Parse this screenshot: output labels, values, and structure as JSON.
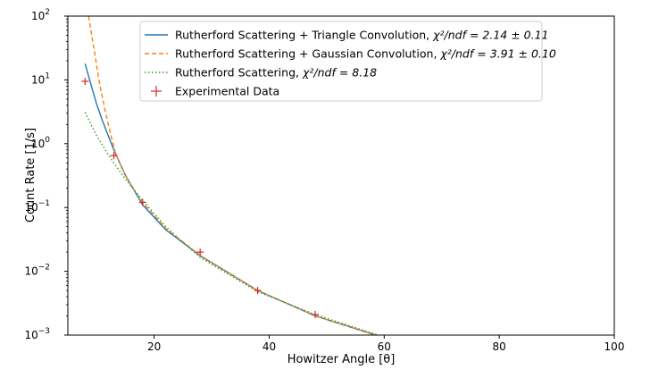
{
  "chart_data": {
    "type": "line",
    "xlabel": "Howitzer Angle [θ]",
    "ylabel": "Count Rate [1/s]",
    "xlim": [
      5,
      100
    ],
    "ylim": [
      0.001,
      100
    ],
    "yscale": "log",
    "x_ticks": [
      {
        "value": 20,
        "label": "20"
      },
      {
        "value": 40,
        "label": "40"
      },
      {
        "value": 60,
        "label": "60"
      },
      {
        "value": 80,
        "label": "80"
      },
      {
        "value": 100,
        "label": "100"
      }
    ],
    "y_ticks": [
      {
        "value": 0.001,
        "base": "10",
        "exp": "−3"
      },
      {
        "value": 0.01,
        "base": "10",
        "exp": "−2"
      },
      {
        "value": 0.1,
        "base": "10",
        "exp": "−1"
      },
      {
        "value": 1,
        "base": "10",
        "exp": "0"
      },
      {
        "value": 10,
        "base": "10",
        "exp": "1"
      },
      {
        "value": 100,
        "base": "10",
        "exp": "2"
      }
    ],
    "legend_position": "top-right",
    "series": [
      {
        "name": "Rutherford Scattering + Triangle Convolution",
        "chi_label": "χ²/ndf = 2.14 ± 0.11",
        "style": "solid",
        "color": "#1f77b4",
        "x": [
          8,
          9,
          10,
          11,
          12,
          13,
          15,
          18,
          22,
          28,
          38,
          48,
          58.5
        ],
        "y": [
          18,
          8.5,
          4.2,
          2.3,
          1.35,
          0.8,
          0.32,
          0.11,
          0.045,
          0.0175,
          0.005,
          0.002,
          0.001
        ]
      },
      {
        "name": "Rutherford Scattering + Gaussian Convolution",
        "chi_label": "χ²/ndf = 3.91 ± 0.10",
        "style": "dashed",
        "color": "#ff7f0e",
        "x": [
          8.6,
          9.5,
          10.5,
          11.5,
          12.5,
          13.3,
          14.5,
          16,
          18,
          22,
          28,
          38,
          48,
          58.5
        ],
        "y": [
          100,
          32,
          9,
          3.2,
          1.35,
          0.7,
          0.4,
          0.22,
          0.12,
          0.047,
          0.0178,
          0.005,
          0.002,
          0.001
        ]
      },
      {
        "name": "Rutherford Scattering",
        "chi_label": "χ²/ndf = 8.18",
        "style": "dotted",
        "color": "#2ca02c",
        "x": [
          8,
          9,
          10,
          11,
          12,
          13,
          15,
          18,
          22,
          28,
          38,
          48,
          59
        ],
        "y": [
          3.1,
          2.0,
          1.35,
          0.95,
          0.68,
          0.5,
          0.28,
          0.13,
          0.05,
          0.0165,
          0.0048,
          0.0021,
          0.001
        ]
      },
      {
        "name": "Experimental Data",
        "style": "markers",
        "color": "#d62728",
        "x": [
          8,
          13,
          18,
          28,
          38,
          48
        ],
        "y": [
          9.5,
          0.65,
          0.12,
          0.02,
          0.005,
          0.0021
        ]
      }
    ]
  }
}
